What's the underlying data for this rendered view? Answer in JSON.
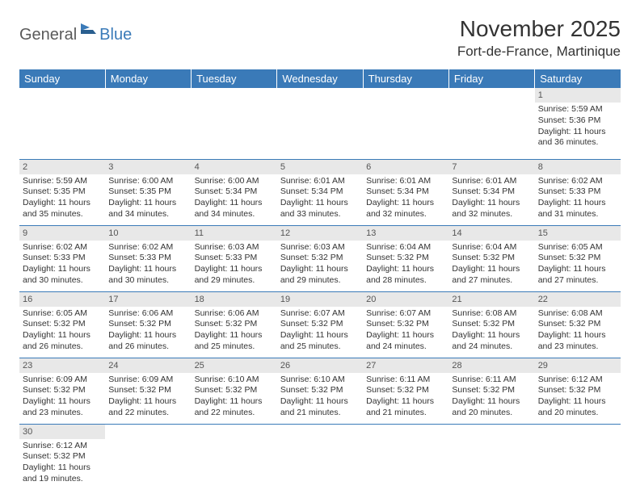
{
  "logo": {
    "general": "General",
    "blue": "Blue"
  },
  "title": "November 2025",
  "location": "Fort-de-France, Martinique",
  "colors": {
    "header_bg": "#3a7ab8",
    "header_text": "#ffffff",
    "row_divider": "#3a7ab8",
    "daynum_bg": "#e8e8e8",
    "body_text": "#333333",
    "logo_gray": "#5a5a5a",
    "logo_blue": "#3a7ab8"
  },
  "typography": {
    "title_fontsize": 28,
    "location_fontsize": 17,
    "header_fontsize": 13,
    "cell_fontsize": 10.5,
    "logo_fontsize": 20
  },
  "weekdays": [
    "Sunday",
    "Monday",
    "Tuesday",
    "Wednesday",
    "Thursday",
    "Friday",
    "Saturday"
  ],
  "weeks": [
    [
      null,
      null,
      null,
      null,
      null,
      null,
      {
        "n": "1",
        "sunrise": "Sunrise: 5:59 AM",
        "sunset": "Sunset: 5:36 PM",
        "day1": "Daylight: 11 hours",
        "day2": "and 36 minutes."
      }
    ],
    [
      {
        "n": "2",
        "sunrise": "Sunrise: 5:59 AM",
        "sunset": "Sunset: 5:35 PM",
        "day1": "Daylight: 11 hours",
        "day2": "and 35 minutes."
      },
      {
        "n": "3",
        "sunrise": "Sunrise: 6:00 AM",
        "sunset": "Sunset: 5:35 PM",
        "day1": "Daylight: 11 hours",
        "day2": "and 34 minutes."
      },
      {
        "n": "4",
        "sunrise": "Sunrise: 6:00 AM",
        "sunset": "Sunset: 5:34 PM",
        "day1": "Daylight: 11 hours",
        "day2": "and 34 minutes."
      },
      {
        "n": "5",
        "sunrise": "Sunrise: 6:01 AM",
        "sunset": "Sunset: 5:34 PM",
        "day1": "Daylight: 11 hours",
        "day2": "and 33 minutes."
      },
      {
        "n": "6",
        "sunrise": "Sunrise: 6:01 AM",
        "sunset": "Sunset: 5:34 PM",
        "day1": "Daylight: 11 hours",
        "day2": "and 32 minutes."
      },
      {
        "n": "7",
        "sunrise": "Sunrise: 6:01 AM",
        "sunset": "Sunset: 5:34 PM",
        "day1": "Daylight: 11 hours",
        "day2": "and 32 minutes."
      },
      {
        "n": "8",
        "sunrise": "Sunrise: 6:02 AM",
        "sunset": "Sunset: 5:33 PM",
        "day1": "Daylight: 11 hours",
        "day2": "and 31 minutes."
      }
    ],
    [
      {
        "n": "9",
        "sunrise": "Sunrise: 6:02 AM",
        "sunset": "Sunset: 5:33 PM",
        "day1": "Daylight: 11 hours",
        "day2": "and 30 minutes."
      },
      {
        "n": "10",
        "sunrise": "Sunrise: 6:02 AM",
        "sunset": "Sunset: 5:33 PM",
        "day1": "Daylight: 11 hours",
        "day2": "and 30 minutes."
      },
      {
        "n": "11",
        "sunrise": "Sunrise: 6:03 AM",
        "sunset": "Sunset: 5:33 PM",
        "day1": "Daylight: 11 hours",
        "day2": "and 29 minutes."
      },
      {
        "n": "12",
        "sunrise": "Sunrise: 6:03 AM",
        "sunset": "Sunset: 5:32 PM",
        "day1": "Daylight: 11 hours",
        "day2": "and 29 minutes."
      },
      {
        "n": "13",
        "sunrise": "Sunrise: 6:04 AM",
        "sunset": "Sunset: 5:32 PM",
        "day1": "Daylight: 11 hours",
        "day2": "and 28 minutes."
      },
      {
        "n": "14",
        "sunrise": "Sunrise: 6:04 AM",
        "sunset": "Sunset: 5:32 PM",
        "day1": "Daylight: 11 hours",
        "day2": "and 27 minutes."
      },
      {
        "n": "15",
        "sunrise": "Sunrise: 6:05 AM",
        "sunset": "Sunset: 5:32 PM",
        "day1": "Daylight: 11 hours",
        "day2": "and 27 minutes."
      }
    ],
    [
      {
        "n": "16",
        "sunrise": "Sunrise: 6:05 AM",
        "sunset": "Sunset: 5:32 PM",
        "day1": "Daylight: 11 hours",
        "day2": "and 26 minutes."
      },
      {
        "n": "17",
        "sunrise": "Sunrise: 6:06 AM",
        "sunset": "Sunset: 5:32 PM",
        "day1": "Daylight: 11 hours",
        "day2": "and 26 minutes."
      },
      {
        "n": "18",
        "sunrise": "Sunrise: 6:06 AM",
        "sunset": "Sunset: 5:32 PM",
        "day1": "Daylight: 11 hours",
        "day2": "and 25 minutes."
      },
      {
        "n": "19",
        "sunrise": "Sunrise: 6:07 AM",
        "sunset": "Sunset: 5:32 PM",
        "day1": "Daylight: 11 hours",
        "day2": "and 25 minutes."
      },
      {
        "n": "20",
        "sunrise": "Sunrise: 6:07 AM",
        "sunset": "Sunset: 5:32 PM",
        "day1": "Daylight: 11 hours",
        "day2": "and 24 minutes."
      },
      {
        "n": "21",
        "sunrise": "Sunrise: 6:08 AM",
        "sunset": "Sunset: 5:32 PM",
        "day1": "Daylight: 11 hours",
        "day2": "and 24 minutes."
      },
      {
        "n": "22",
        "sunrise": "Sunrise: 6:08 AM",
        "sunset": "Sunset: 5:32 PM",
        "day1": "Daylight: 11 hours",
        "day2": "and 23 minutes."
      }
    ],
    [
      {
        "n": "23",
        "sunrise": "Sunrise: 6:09 AM",
        "sunset": "Sunset: 5:32 PM",
        "day1": "Daylight: 11 hours",
        "day2": "and 23 minutes."
      },
      {
        "n": "24",
        "sunrise": "Sunrise: 6:09 AM",
        "sunset": "Sunset: 5:32 PM",
        "day1": "Daylight: 11 hours",
        "day2": "and 22 minutes."
      },
      {
        "n": "25",
        "sunrise": "Sunrise: 6:10 AM",
        "sunset": "Sunset: 5:32 PM",
        "day1": "Daylight: 11 hours",
        "day2": "and 22 minutes."
      },
      {
        "n": "26",
        "sunrise": "Sunrise: 6:10 AM",
        "sunset": "Sunset: 5:32 PM",
        "day1": "Daylight: 11 hours",
        "day2": "and 21 minutes."
      },
      {
        "n": "27",
        "sunrise": "Sunrise: 6:11 AM",
        "sunset": "Sunset: 5:32 PM",
        "day1": "Daylight: 11 hours",
        "day2": "and 21 minutes."
      },
      {
        "n": "28",
        "sunrise": "Sunrise: 6:11 AM",
        "sunset": "Sunset: 5:32 PM",
        "day1": "Daylight: 11 hours",
        "day2": "and 20 minutes."
      },
      {
        "n": "29",
        "sunrise": "Sunrise: 6:12 AM",
        "sunset": "Sunset: 5:32 PM",
        "day1": "Daylight: 11 hours",
        "day2": "and 20 minutes."
      }
    ],
    [
      {
        "n": "30",
        "sunrise": "Sunrise: 6:12 AM",
        "sunset": "Sunset: 5:32 PM",
        "day1": "Daylight: 11 hours",
        "day2": "and 19 minutes."
      },
      null,
      null,
      null,
      null,
      null,
      null
    ]
  ]
}
